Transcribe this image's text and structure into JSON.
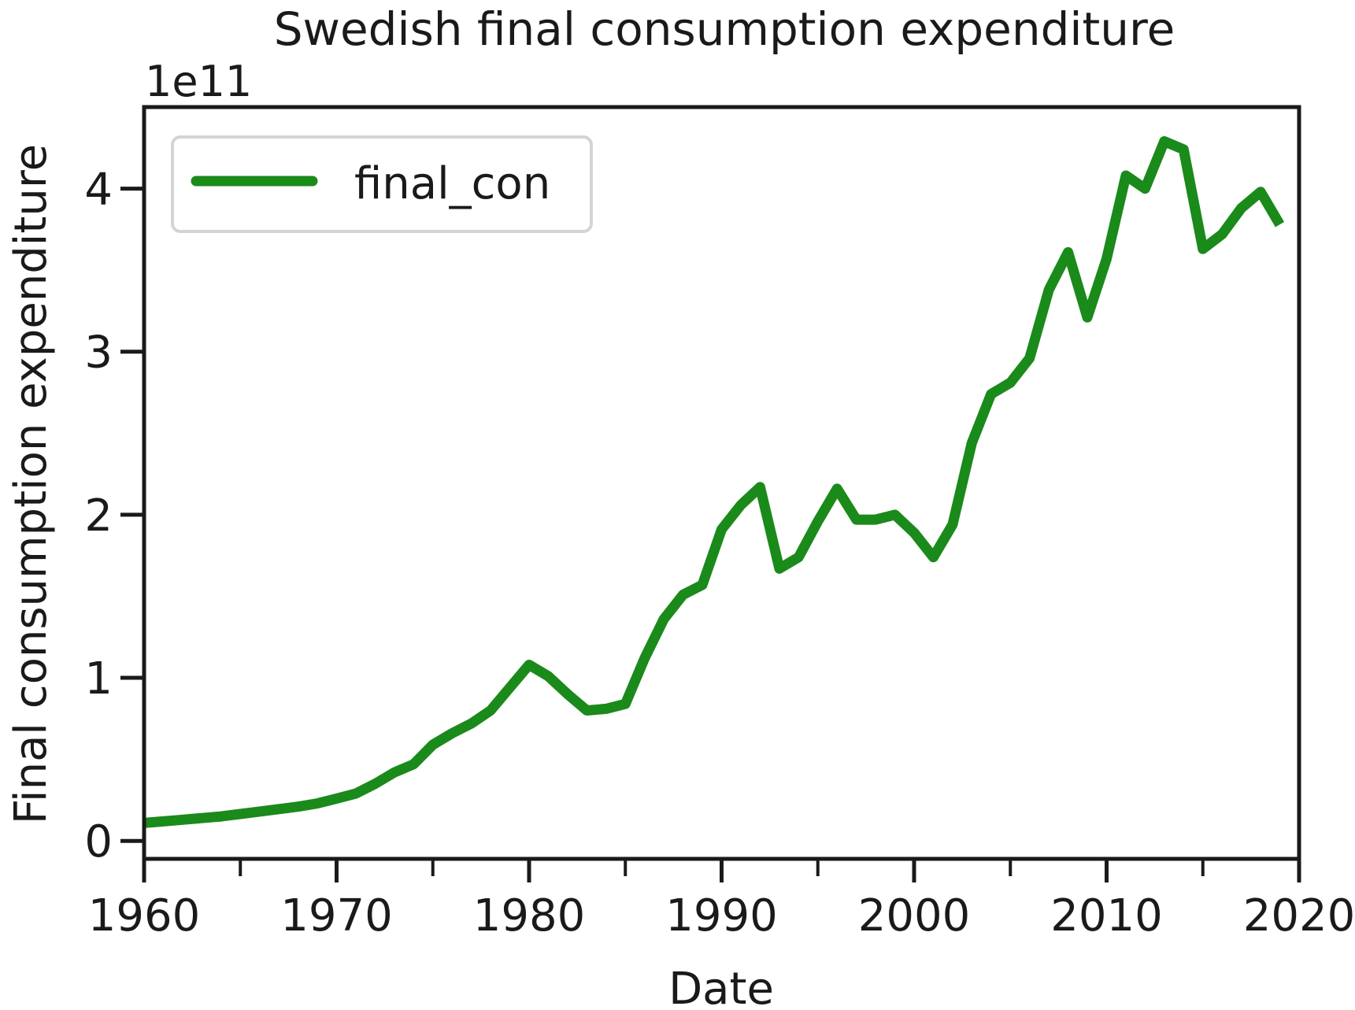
{
  "chart_data": {
    "type": "line",
    "title": "Swedish final consumption expenditure",
    "xlabel": "Date",
    "ylabel": "Final consumption expenditure",
    "y_offset_label": "1e11",
    "y_scale_factor": 100000000000,
    "xlim": [
      1960,
      2020
    ],
    "ylim": [
      -0.11,
      4.5
    ],
    "x_ticks": [
      1960,
      1970,
      1980,
      1990,
      2000,
      2010,
      2020
    ],
    "x_minor_ticks": [
      1965,
      1975,
      1985,
      1995,
      2005,
      2015
    ],
    "y_ticks": [
      0,
      1,
      2,
      3,
      4
    ],
    "grid": false,
    "legend_position": "top-left",
    "series": [
      {
        "name": "final_con",
        "color": "#1a8a1a",
        "x": [
          1960,
          1961,
          1962,
          1963,
          1964,
          1965,
          1966,
          1967,
          1968,
          1969,
          1970,
          1971,
          1972,
          1973,
          1974,
          1975,
          1976,
          1977,
          1978,
          1979,
          1980,
          1981,
          1982,
          1983,
          1984,
          1985,
          1986,
          1987,
          1988,
          1989,
          1990,
          1991,
          1992,
          1993,
          1994,
          1995,
          1996,
          1997,
          1998,
          1999,
          2000,
          2001,
          2002,
          2003,
          2004,
          2005,
          2006,
          2007,
          2008,
          2009,
          2010,
          2011,
          2012,
          2013,
          2014,
          2015,
          2016,
          2017,
          2018,
          2019
        ],
        "y": [
          0.11,
          0.12,
          0.13,
          0.14,
          0.15,
          0.165,
          0.18,
          0.195,
          0.21,
          0.23,
          0.26,
          0.29,
          0.35,
          0.42,
          0.47,
          0.59,
          0.66,
          0.72,
          0.8,
          0.94,
          1.08,
          1.01,
          0.9,
          0.8,
          0.81,
          0.84,
          1.12,
          1.36,
          1.51,
          1.57,
          1.91,
          2.06,
          2.17,
          1.67,
          1.74,
          1.96,
          2.16,
          1.97,
          1.97,
          2.0,
          1.89,
          1.74,
          1.94,
          2.44,
          2.74,
          2.81,
          2.96,
          3.38,
          3.61,
          3.21,
          3.57,
          4.08,
          4.0,
          4.29,
          4.24,
          3.63,
          3.72,
          3.88,
          3.98,
          3.78
        ]
      }
    ]
  }
}
